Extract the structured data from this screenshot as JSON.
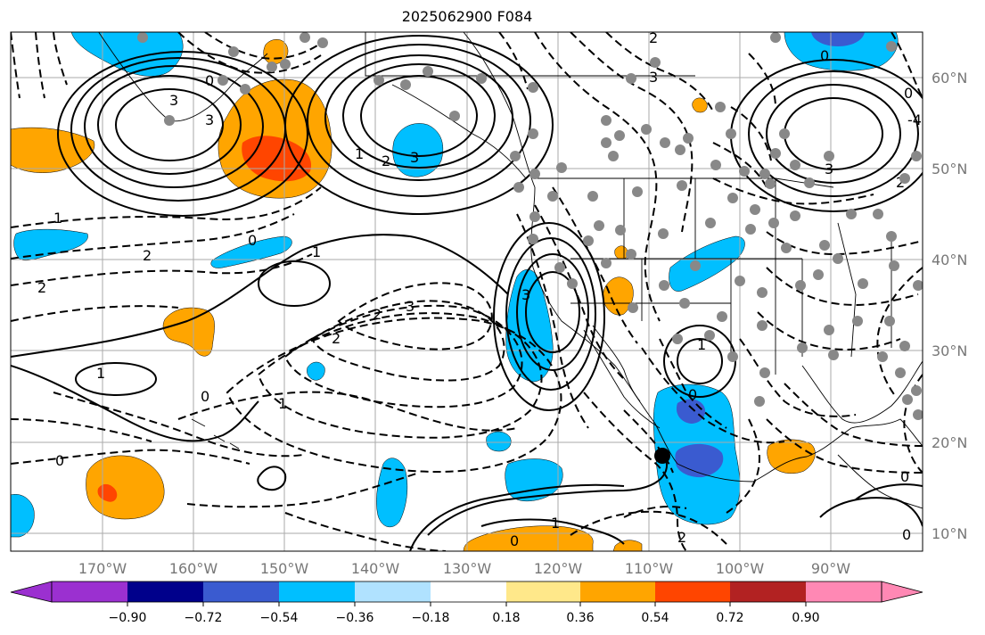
{
  "title": "2025062900 F084",
  "map": {
    "longitude_labels": [
      "170°W",
      "160°W",
      "150°W",
      "140°W",
      "130°W",
      "120°W",
      "110°W",
      "100°W",
      "90°W"
    ],
    "latitude_labels": [
      "60°N",
      "50°N",
      "40°N",
      "30°N",
      "20°N",
      "10°N"
    ],
    "contour_labels": [
      "3",
      "2",
      "1",
      "0",
      "-1",
      "-2",
      "-3",
      "-4"
    ],
    "station_markers": "grey dots",
    "marked_point": "black dot"
  },
  "colorbar": {
    "tick_labels": [
      "−0.90",
      "−0.72",
      "−0.54",
      "−0.36",
      "−0.18",
      "0.18",
      "0.36",
      "0.54",
      "0.72",
      "0.90"
    ],
    "colors": [
      "#9b30d0",
      "#00008b",
      "#3a5bd0",
      "#00bfff",
      "#b0e2ff",
      "#ffffff",
      "#ffe88a",
      "#ffa500",
      "#ff4500",
      "#b22222",
      "#ff88b4"
    ]
  },
  "colors": {
    "orange": "#ffa500",
    "red_orange": "#ff4500",
    "cyan": "#00bfff",
    "blue": "#3a5bd0",
    "grid": "#aaaaaa",
    "station": "#888888"
  }
}
